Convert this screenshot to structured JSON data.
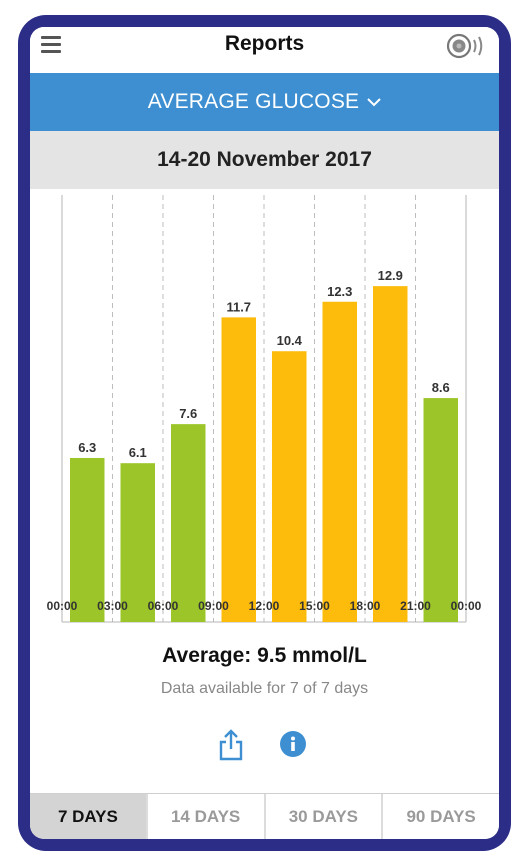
{
  "header": {
    "title": "Reports",
    "menu_icon": "hamburger-menu-icon",
    "sensor_icon": "sensor-scan-icon"
  },
  "report_selector": {
    "label": "AVERAGE GLUCOSE",
    "icon": "chevron-down-icon"
  },
  "date_range": "14-20 November 2017",
  "chart_data": {
    "type": "bar",
    "categories": [
      "00:00-03:00",
      "03:00-06:00",
      "06:00-09:00",
      "09:00-12:00",
      "12:00-15:00",
      "15:00-18:00",
      "18:00-21:00",
      "21:00-00:00"
    ],
    "x_tick_labels": [
      "00:00",
      "03:00",
      "06:00",
      "09:00",
      "12:00",
      "15:00",
      "18:00",
      "21:00",
      "00:00"
    ],
    "values": [
      6.3,
      6.1,
      7.6,
      11.7,
      10.4,
      12.3,
      12.9,
      8.6
    ],
    "value_labels": [
      "6.3",
      "6.1",
      "7.6",
      "11.7",
      "10.4",
      "12.3",
      "12.9",
      "8.6"
    ],
    "ylim": [
      0,
      16.4
    ],
    "grid": "vertical-dashed",
    "colors": {
      "in_range": "#9cc52a",
      "high": "#fdbb0b"
    },
    "high_threshold": 10.0
  },
  "summary": {
    "average": "Average: 9.5 mmol/L",
    "availability": "Data available for 7 of 7 days"
  },
  "actions": {
    "share_icon": "share-icon",
    "info_icon": "info-icon"
  },
  "tabs": [
    {
      "label": "7 DAYS",
      "active": true
    },
    {
      "label": "14 DAYS",
      "active": false
    },
    {
      "label": "30 DAYS",
      "active": false
    },
    {
      "label": "90 DAYS",
      "active": false
    }
  ],
  "colors": {
    "frame": "#2b2d86",
    "accent": "#3d8fd1",
    "date_bar": "#e4e4e4"
  }
}
